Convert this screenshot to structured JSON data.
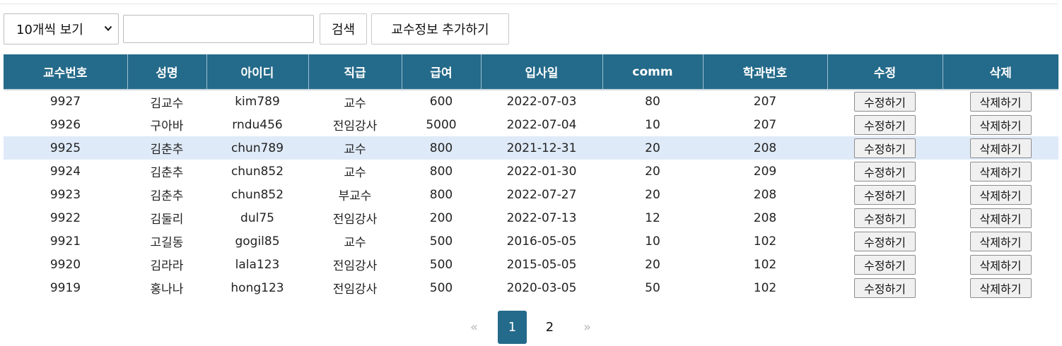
{
  "toolbar": {
    "page_size_selected": "10개씩 보기",
    "search_value": "",
    "search_label": "검색",
    "add_label": "교수정보 추가하기"
  },
  "table": {
    "columns": [
      "교수번호",
      "성명",
      "아이디",
      "직급",
      "급여",
      "입사일",
      "comm",
      "학과번호",
      "수정",
      "삭제"
    ],
    "edit_label": "수정하기",
    "delete_label": "삭제하기",
    "highlighted_row": 2,
    "rows": [
      [
        "9927",
        "김교수",
        "kim789",
        "교수",
        "600",
        "2022-07-03",
        "80",
        "207"
      ],
      [
        "9926",
        "구아바",
        "rndu456",
        "전임강사",
        "5000",
        "2022-07-04",
        "10",
        "207"
      ],
      [
        "9925",
        "김춘추",
        "chun789",
        "교수",
        "800",
        "2021-12-31",
        "20",
        "208"
      ],
      [
        "9924",
        "김춘추",
        "chun852",
        "교수",
        "800",
        "2022-01-30",
        "20",
        "209"
      ],
      [
        "9923",
        "김춘추",
        "chun852",
        "부교수",
        "800",
        "2022-07-27",
        "20",
        "208"
      ],
      [
        "9922",
        "김둘리",
        "dul75",
        "전임강사",
        "200",
        "2022-07-13",
        "12",
        "208"
      ],
      [
        "9921",
        "고길동",
        "gogil85",
        "교수",
        "500",
        "2016-05-05",
        "10",
        "102"
      ],
      [
        "9920",
        "김라라",
        "lala123",
        "전임강사",
        "500",
        "2015-05-05",
        "20",
        "102"
      ],
      [
        "9919",
        "홍나나",
        "hong123",
        "전임강사",
        "500",
        "2020-03-05",
        "50",
        "102"
      ]
    ]
  },
  "pagination": {
    "prev": "«",
    "pages": [
      "1",
      "2"
    ],
    "current": "1",
    "next": "»"
  },
  "colors": {
    "header_bg": "#246a8a",
    "highlight_row": "#dfeaf8",
    "active_page": "#246a8a"
  }
}
